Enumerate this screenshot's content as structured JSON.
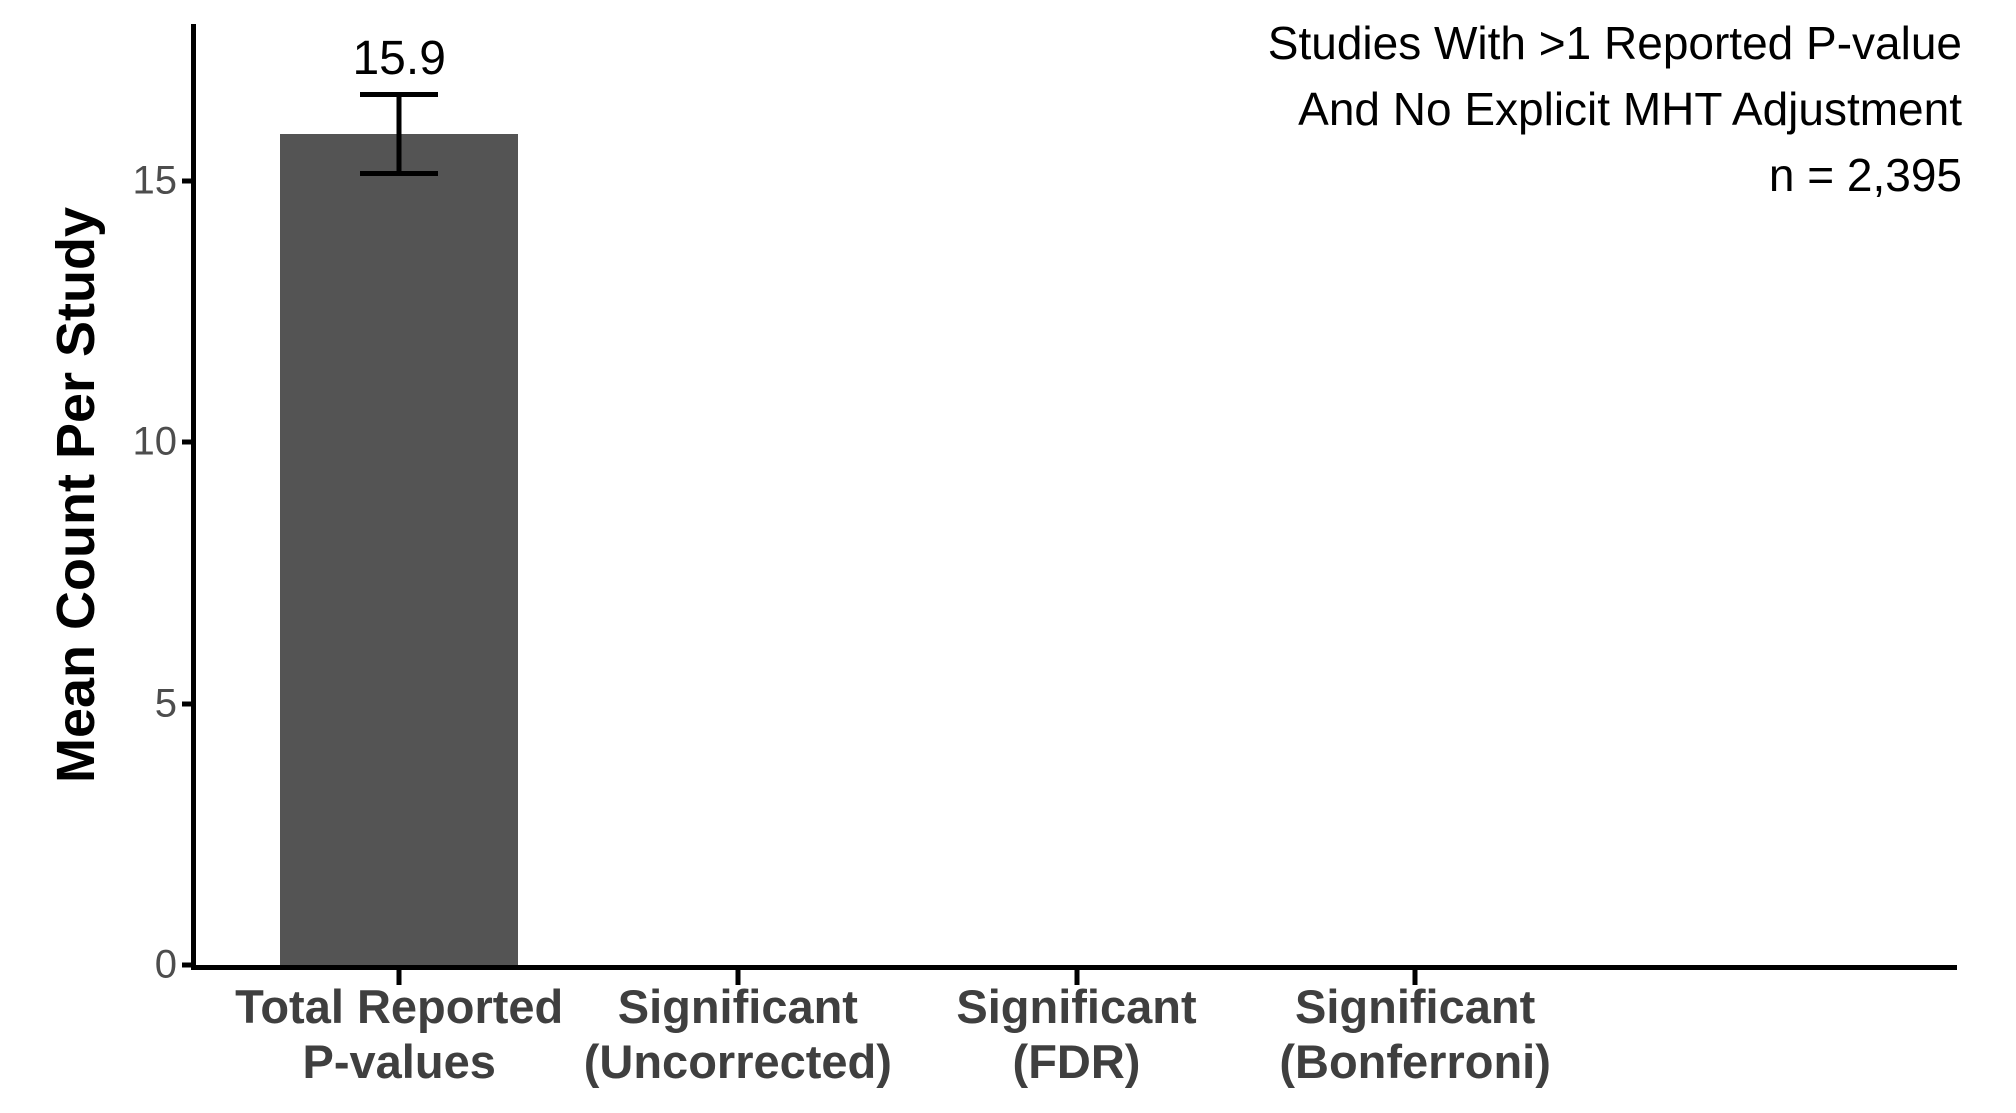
{
  "chart_data": {
    "type": "bar",
    "title": "",
    "ylabel": "Mean Count Per Study",
    "xlabel": "",
    "categories": [
      "Total Reported\nP-values",
      "Significant\n(Uncorrected)",
      "Significant\n(FDR)",
      "Significant\n(Bonferroni)"
    ],
    "values": [
      15.9,
      0,
      0,
      0
    ],
    "bar_value_label": "15.9",
    "error_bar": {
      "category_index": 0,
      "upper": 16.7,
      "lower": 15.1
    },
    "yticks": [
      0,
      5,
      10,
      15
    ],
    "ytick_labels": [
      "0",
      "5",
      "10",
      "15"
    ],
    "ylim": [
      0,
      18
    ],
    "grid": false,
    "legend": "none",
    "annotation_lines": [
      "Studies With >1 Reported P-value",
      "And No Explicit MHT Adjustment",
      "n = 2,395"
    ],
    "colors": {
      "bar": "#545454",
      "axis": "#000000",
      "text": "#000000",
      "tick_label": "#4d4d4d",
      "category_label": "#3f3f3f",
      "background": "#ffffff"
    }
  }
}
